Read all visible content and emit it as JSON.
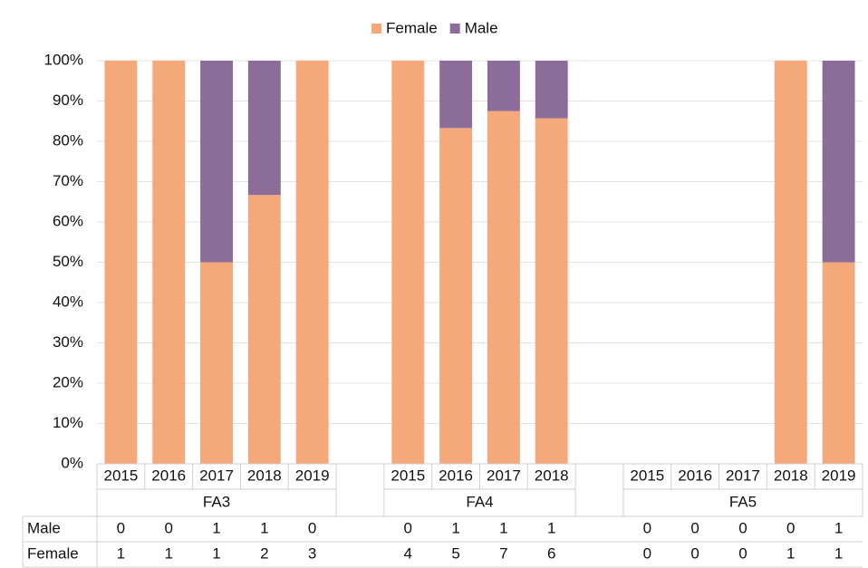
{
  "chart_data": {
    "type": "stacked_bar_100",
    "groups": [
      {
        "label": "FA3",
        "categories": [
          "2015",
          "2016",
          "2017",
          "2018",
          "2019"
        ]
      },
      {
        "label": "FA4",
        "categories": [
          "2015",
          "2016",
          "2017",
          "2018"
        ]
      },
      {
        "label": "FA5",
        "categories": [
          "2015",
          "2016",
          "2017",
          "2018",
          "2019"
        ]
      }
    ],
    "series": [
      {
        "name": "Female",
        "color": "#f5a97a",
        "values": [
          [
            100,
            100,
            50,
            66.7,
            100
          ],
          [
            100,
            83.3,
            87.5,
            85.7
          ],
          [
            null,
            null,
            null,
            100,
            50
          ]
        ]
      },
      {
        "name": "Male",
        "color": "#8c6d9a",
        "values": [
          [
            0,
            0,
            50,
            33.3,
            0
          ],
          [
            0,
            16.7,
            12.5,
            14.3
          ],
          [
            null,
            null,
            null,
            0,
            50
          ]
        ]
      }
    ],
    "ylim": [
      0,
      100
    ],
    "yticks": [
      {
        "value": 0,
        "label": "0%"
      },
      {
        "value": 10,
        "label": "10%"
      },
      {
        "value": 20,
        "label": "20%"
      },
      {
        "value": 30,
        "label": "30%"
      },
      {
        "value": 40,
        "label": "40%"
      },
      {
        "value": 50,
        "label": "50%"
      },
      {
        "value": 60,
        "label": "60%"
      },
      {
        "value": 70,
        "label": "70%"
      },
      {
        "value": 80,
        "label": "80%"
      },
      {
        "value": 90,
        "label": "90%"
      },
      {
        "value": 100,
        "label": "100%"
      }
    ],
    "grid": true,
    "legend": "top",
    "table": {
      "rows": [
        {
          "label": "Male",
          "values": [
            [
              0,
              0,
              1,
              1,
              0
            ],
            [
              0,
              1,
              1,
              1
            ],
            [
              0,
              0,
              0,
              0,
              1
            ]
          ]
        },
        {
          "label": "Female",
          "values": [
            [
              1,
              1,
              1,
              2,
              3
            ],
            [
              4,
              5,
              7,
              6
            ],
            [
              0,
              0,
              0,
              1,
              1
            ]
          ]
        }
      ]
    }
  }
}
